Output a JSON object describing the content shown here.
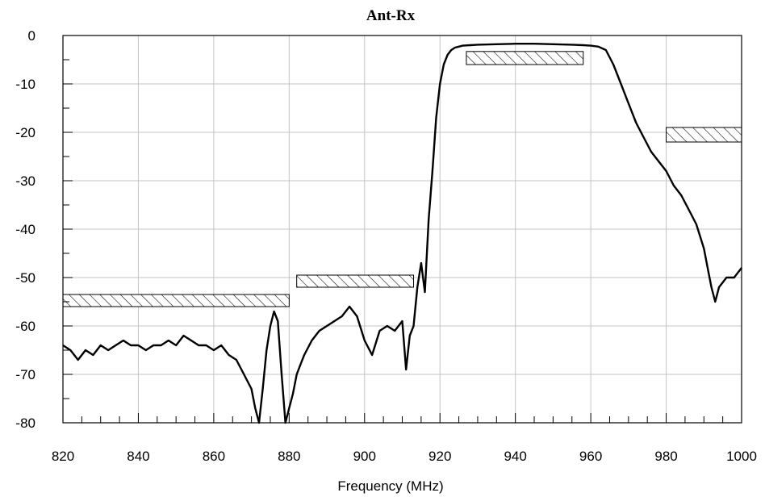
{
  "chart_data": {
    "type": "line",
    "title": "Ant-Rx",
    "xlabel": "Frequency (MHz)",
    "ylabel": "",
    "xlim": [
      820,
      1000
    ],
    "ylim": [
      -80,
      0
    ],
    "x_major_ticks": [
      820,
      840,
      860,
      880,
      900,
      920,
      940,
      960,
      980,
      1000
    ],
    "x_minor_step": 5,
    "y_major_ticks": [
      0,
      -10,
      -20,
      -30,
      -40,
      -50,
      -60,
      -70,
      -80
    ],
    "y_minor_step": 5,
    "grid": true,
    "series": [
      {
        "x": [
          820,
          822,
          824,
          826,
          828,
          830,
          832,
          834,
          836,
          838,
          840,
          842,
          844,
          846,
          848,
          850,
          852,
          854,
          856,
          858,
          860,
          862,
          864,
          866,
          868,
          870,
          871,
          872,
          873,
          874,
          875,
          876,
          877,
          878,
          879,
          880,
          881,
          882,
          883,
          884,
          886,
          888,
          890,
          892,
          894,
          896,
          898,
          900,
          902,
          904,
          906,
          908,
          910,
          911,
          912,
          913,
          914,
          915,
          916,
          917,
          918,
          919,
          920,
          921,
          922,
          923,
          924,
          925,
          926,
          928,
          930,
          935,
          940,
          945,
          950,
          955,
          958,
          960,
          962,
          964,
          966,
          968,
          970,
          972,
          974,
          976,
          978,
          980,
          982,
          984,
          986,
          988,
          990,
          991,
          992,
          993,
          994,
          996,
          998,
          1000
        ],
        "y": [
          -64,
          -65,
          -67,
          -65,
          -66,
          -64,
          -65,
          -64,
          -63,
          -64,
          -64,
          -65,
          -64,
          -64,
          -63,
          -64,
          -62,
          -63,
          -64,
          -64,
          -65,
          -64,
          -66,
          -67,
          -70,
          -73,
          -77,
          -80,
          -73,
          -65,
          -60,
          -57,
          -59,
          -70,
          -80,
          -77,
          -74,
          -70,
          -68,
          -66,
          -63,
          -61,
          -60,
          -59,
          -58,
          -56,
          -58,
          -63,
          -66,
          -61,
          -60,
          -61,
          -59,
          -69,
          -62,
          -60,
          -52,
          -47,
          -53,
          -38,
          -28,
          -17,
          -10,
          -6,
          -4,
          -3,
          -2.5,
          -2.3,
          -2.1,
          -2,
          -1.9,
          -1.8,
          -1.7,
          -1.7,
          -1.8,
          -1.9,
          -2,
          -2.1,
          -2.3,
          -3,
          -6,
          -10,
          -14,
          -18,
          -21,
          -24,
          -26,
          -28,
          -31,
          -33,
          -36,
          -39,
          -44,
          -48,
          -52,
          -55,
          -52,
          -50,
          -50,
          -48
        ]
      }
    ],
    "spec_boxes": [
      {
        "x": [
          820,
          880
        ],
        "y": [
          -56,
          -53.5
        ]
      },
      {
        "x": [
          882,
          913
        ],
        "y": [
          -52,
          -49.5
        ]
      },
      {
        "x": [
          927,
          958
        ],
        "y": [
          -6,
          -3.3
        ]
      },
      {
        "x": [
          980,
          1000
        ],
        "y": [
          -22,
          -19
        ]
      }
    ]
  }
}
